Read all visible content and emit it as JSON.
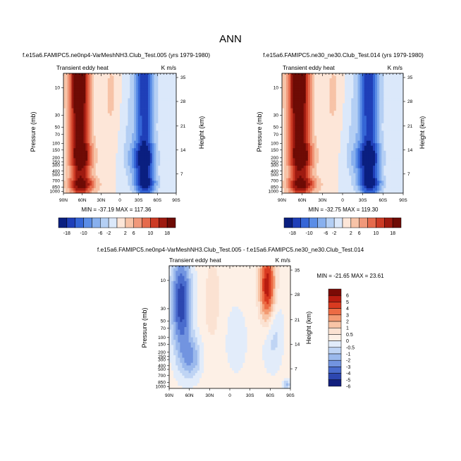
{
  "figure_title": "ANN",
  "chart_data": [
    {
      "type": "heatmap",
      "title": "f.e15a6.FAMIPC5.ne0np4-VarMeshNH3.Club_Test.005 (yrs 1979-1980)",
      "left_string": "Transient eddy heat",
      "right_string": "K m/s",
      "ylabel": "Pressure (mb)",
      "ylabel_right": "Height (km)",
      "x_ticks": [
        "90N",
        "60N",
        "30N",
        "0",
        "30S",
        "60S",
        "90S"
      ],
      "y_ticks": [
        "10",
        "30",
        "50",
        "70",
        "100",
        "150",
        "200",
        "250",
        "300",
        "400",
        "500",
        "700",
        "850",
        "1000"
      ],
      "y_ticks_right": [
        "35",
        "28",
        "21",
        "14",
        "7"
      ],
      "min_max": "MIN = -37.19   MAX = 117.36",
      "contour_levels": [
        "-18",
        "-10",
        "-6",
        "-2",
        "2",
        "6",
        "10",
        "18"
      ],
      "colorbar_labels": [
        "-18",
        "-10",
        "-6",
        "-2",
        "2",
        "6",
        "10",
        "18"
      ]
    },
    {
      "type": "heatmap",
      "title": "f.e15a6.FAMIPC5.ne30_ne30.Club_Test.014 (yrs 1979-1980)",
      "left_string": "Transient eddy heat",
      "right_string": "K m/s",
      "ylabel": "Pressure (mb)",
      "ylabel_right": "Height (km)",
      "x_ticks": [
        "90N",
        "60N",
        "30N",
        "0",
        "30S",
        "60S",
        "90S"
      ],
      "y_ticks": [
        "10",
        "30",
        "50",
        "70",
        "100",
        "150",
        "200",
        "250",
        "300",
        "400",
        "500",
        "700",
        "850",
        "1000"
      ],
      "y_ticks_right": [
        "35",
        "28",
        "21",
        "14",
        "7"
      ],
      "min_max": "MIN = -32.75   MAX = 119.30",
      "contour_levels": [
        "-18",
        "-10",
        "-6",
        "-2",
        "2",
        "6",
        "10",
        "18"
      ]
    },
    {
      "type": "heatmap",
      "title": "f.e15a6.FAMIPC5.ne0np4-VarMeshNH3.Club_Test.005 - f.e15a6.FAMIPC5.ne30_ne30.Club_Test.014",
      "left_string": "Transient eddy heat",
      "right_string": "K m/s",
      "ylabel": "Pressure (mb)",
      "ylabel_right": "Height (km)",
      "x_ticks": [
        "90N",
        "60N",
        "30N",
        "0",
        "30S",
        "60S",
        "90S"
      ],
      "y_ticks": [
        "10",
        "30",
        "50",
        "70",
        "100",
        "150",
        "200",
        "250",
        "300",
        "400",
        "500",
        "700",
        "850",
        "1000"
      ],
      "y_ticks_right": [
        "35",
        "28",
        "21",
        "14",
        "7"
      ],
      "min_max": "MIN = -21.65   MAX = 23.61",
      "contour_levels": [
        "6",
        "5",
        "4",
        "3",
        "2",
        "1",
        "0.5",
        "0",
        "-0.5",
        "-1",
        "-2",
        "-3",
        "-4",
        "-5",
        "-6"
      ]
    }
  ],
  "colors": {
    "top_palette": [
      "#0a1f80",
      "#1f3fb8",
      "#3566d6",
      "#5b8de6",
      "#88b0ee",
      "#b4cff4",
      "#dbe8fa",
      "#fde6d8",
      "#f7c3a7",
      "#f0987a",
      "#e56a4c",
      "#cc3b25",
      "#9e1a10",
      "#6e0b05"
    ],
    "diff_palette": [
      "#7a0a05",
      "#b81c10",
      "#d93a20",
      "#ec6b44",
      "#f39a73",
      "#f8c4a6",
      "#fbe2d2",
      "#fdf0e6",
      "#e2ecfa",
      "#bfd4f4",
      "#9bb9ec",
      "#7294e0",
      "#4a6ccd",
      "#2d47b0",
      "#121f7e"
    ],
    "background": "#ffffff"
  }
}
